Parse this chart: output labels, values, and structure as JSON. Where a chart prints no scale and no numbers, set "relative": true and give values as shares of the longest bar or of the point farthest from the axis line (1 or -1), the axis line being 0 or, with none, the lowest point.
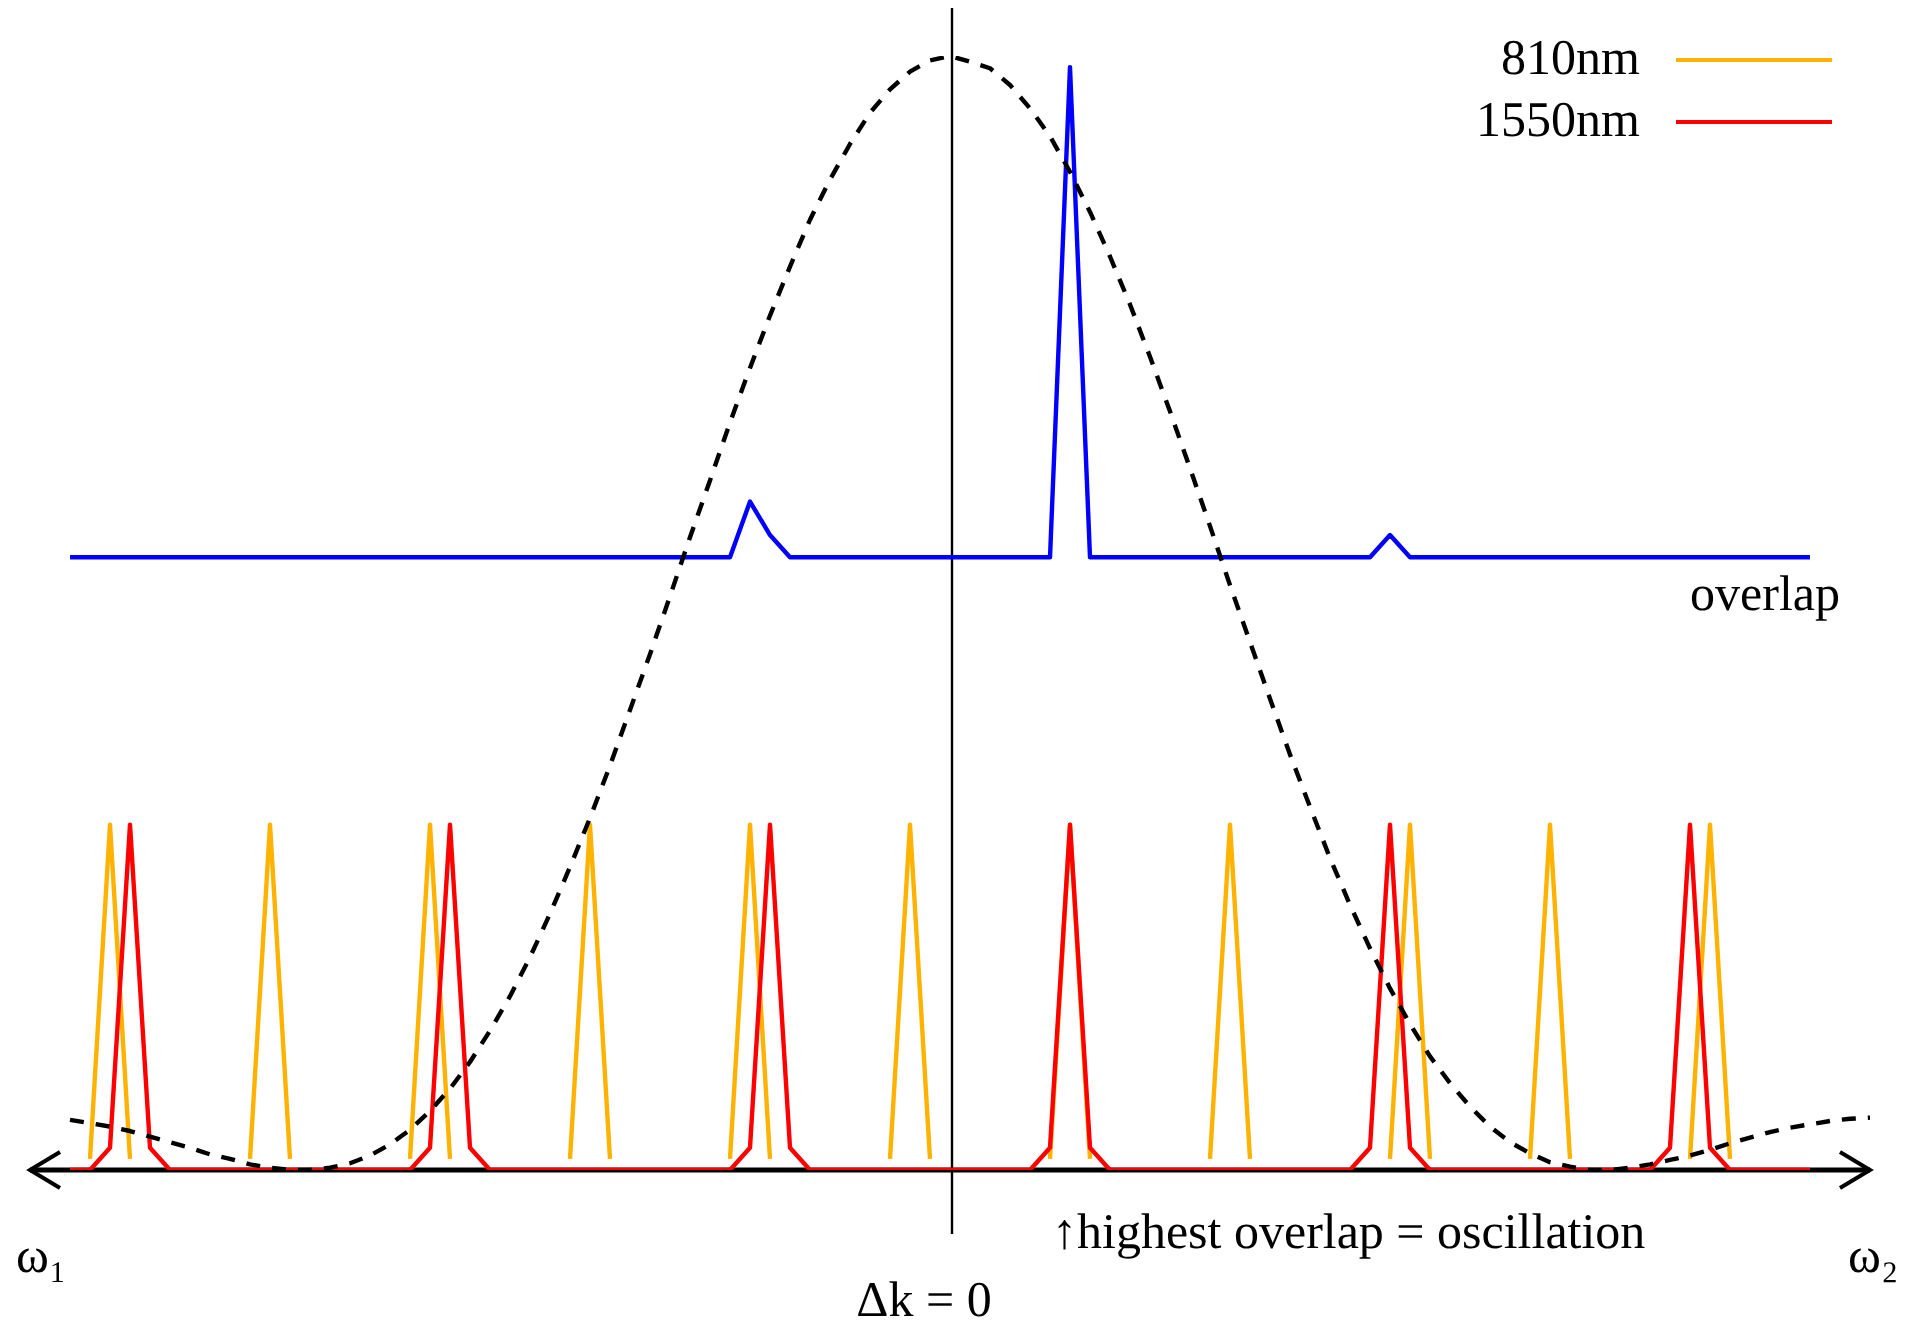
{
  "chart_data": {
    "type": "line",
    "relative": true,
    "legend": "top right",
    "categories": [
      null,
      null,
      null,
      null,
      null,
      null,
      null,
      null,
      null,
      null,
      null,
      null,
      null,
      null,
      null,
      null,
      null,
      null,
      null,
      null,
      null,
      null,
      null,
      null,
      null,
      null,
      null,
      null,
      null,
      null,
      null,
      null,
      null,
      null,
      null,
      null,
      null,
      null,
      null,
      null,
      null,
      null,
      null,
      null,
      null,
      null,
      null,
      null,
      null,
      null,
      null,
      null,
      null,
      null,
      null,
      null,
      null,
      null,
      null,
      null,
      null,
      null,
      null,
      null,
      null,
      null,
      null,
      null,
      null,
      null,
      null,
      null,
      null,
      null,
      null,
      null,
      null,
      null,
      null,
      null,
      null,
      null,
      null,
      null,
      null,
      null,
      null,
      null,
      null,
      null,
      null
    ],
    "series": [
      {
        "name": "810nm",
        "color": "#ffb300",
        "values": [
          null,
          0.01,
          0.31,
          0.01,
          null,
          null,
          null,
          null,
          null,
          0.01,
          0.31,
          0.01,
          null,
          null,
          null,
          null,
          null,
          0.01,
          0.31,
          0.01,
          null,
          null,
          null,
          null,
          null,
          0.01,
          0.31,
          0.01,
          null,
          null,
          null,
          null,
          null,
          0.01,
          0.31,
          0.01,
          null,
          null,
          null,
          null,
          null,
          0.01,
          0.31,
          0.01,
          null,
          null,
          null,
          null,
          null,
          0.01,
          0.31,
          0.01,
          null,
          null,
          null,
          null,
          null,
          0.01,
          0.31,
          0.01,
          null,
          null,
          null,
          null,
          null,
          null,
          0.01,
          0.31,
          0.01,
          null,
          null,
          null,
          null,
          0.01,
          0.31,
          0.01,
          null,
          null,
          null,
          null,
          null,
          0.01,
          0.31,
          0.01,
          null,
          null,
          null,
          null,
          null,
          null,
          null
        ]
      },
      {
        "name": "1550nm",
        "color": "#ff0000",
        "values": [
          0,
          0,
          0.02,
          0.31,
          0.02,
          0,
          0,
          0,
          0,
          0,
          0,
          0,
          0,
          0,
          0,
          0,
          0,
          0,
          0.02,
          0.31,
          0.02,
          0,
          0,
          0,
          0,
          0,
          0,
          0,
          0,
          0,
          0,
          0,
          0,
          0,
          0.02,
          0.31,
          0.02,
          0,
          0,
          0,
          0,
          0,
          0,
          0,
          0,
          0,
          0,
          0,
          0,
          0.02,
          0.31,
          0.02,
          0,
          0,
          0,
          0,
          0,
          0,
          0,
          0,
          0,
          0,
          0,
          0,
          0,
          0.02,
          0.31,
          0.02,
          0,
          0,
          0,
          0,
          0,
          0,
          0,
          0,
          0,
          0,
          0,
          0,
          0.02,
          0.31,
          0.02,
          0,
          0,
          0,
          0,
          0,
          null,
          null,
          null
        ]
      },
      {
        "color": "#0000ff",
        "values": [
          0.55,
          0.55,
          0.55,
          0.55,
          0.55,
          0.55,
          0.55,
          0.55,
          0.55,
          0.55,
          0.55,
          0.55,
          0.55,
          0.55,
          0.55,
          0.55,
          0.55,
          0.55,
          0.55,
          0.55,
          0.55,
          0.55,
          0.55,
          0.55,
          0.55,
          0.55,
          0.55,
          0.55,
          0.55,
          0.55,
          0.55,
          0.55,
          0.55,
          0.55,
          0.6,
          0.57,
          0.55,
          0.55,
          0.55,
          0.55,
          0.55,
          0.55,
          0.55,
          0.55,
          0.55,
          0.55,
          0.55,
          0.55,
          0.55,
          0.55,
          0.99,
          0.55,
          0.55,
          0.55,
          0.55,
          0.55,
          0.55,
          0.55,
          0.55,
          0.55,
          0.55,
          0.55,
          0.55,
          0.55,
          0.55,
          0.55,
          0.57,
          0.55,
          0.55,
          0.55,
          0.55,
          0.55,
          0.55,
          0.55,
          0.55,
          0.55,
          0.55,
          0.55,
          0.55,
          0.55,
          0.55,
          0.55,
          0.55,
          0.55,
          0.55,
          0.55,
          0.55,
          0.55,
          null,
          null,
          null
        ]
      },
      {
        "color": "#000000",
        "line_style": "dashed",
        "values": [
          0.045,
          0.042,
          0.039,
          0.035,
          0.03,
          0.025,
          0.02,
          0.014,
          0.01,
          0.005,
          0.002,
          0,
          0,
          0.002,
          0.006,
          0.013,
          0.023,
          0.036,
          0.053,
          0.073,
          0.097,
          0.125,
          0.156,
          0.191,
          0.23,
          0.272,
          0.316,
          0.363,
          0.413,
          0.463,
          0.515,
          0.568,
          0.619,
          0.671,
          0.72,
          0.767,
          0.811,
          0.853,
          0.889,
          0.921,
          0.949,
          0.97,
          0.986,
          0.996,
          1,
          0.995,
          0.989,
          0.974,
          0.953,
          0.928,
          0.896,
          0.86,
          0.82,
          0.777,
          0.73,
          0.681,
          0.63,
          0.578,
          0.525,
          0.474,
          0.423,
          0.373,
          0.326,
          0.28,
          0.238,
          0.199,
          0.163,
          0.131,
          0.102,
          0.078,
          0.057,
          0.039,
          0.025,
          0.015,
          0.007,
          0.003,
          0,
          0,
          0.002,
          0.005,
          0.009,
          0.013,
          0.018,
          0.024,
          0.029,
          0.034,
          0.038,
          0.041,
          0.044,
          0.046,
          0.047
        ]
      }
    ],
    "annotations": [
      "ω₁",
      "ω₂",
      "Δk = 0",
      "↑highest overlap = oscillation",
      "overlap"
    ]
  }
}
